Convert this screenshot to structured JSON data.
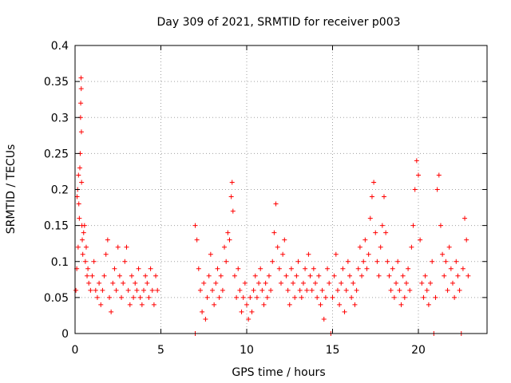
{
  "chart_data": {
    "type": "scatter",
    "title": "Day 309 of 2021, SRMTID for receiver p003",
    "xlabel": "GPS time / hours",
    "ylabel": "SRMTID / TECUs",
    "xlim": [
      0,
      24
    ],
    "ylim": [
      0,
      0.4
    ],
    "xticks": [
      0,
      5,
      10,
      15,
      20
    ],
    "xtick_labels": [
      "0",
      "5",
      "10",
      "15",
      "20"
    ],
    "yticks": [
      0,
      0.05,
      0.1,
      0.15,
      0.2,
      0.25,
      0.3,
      0.35,
      0.4
    ],
    "ytick_labels": [
      "0",
      "0.05",
      "0.1",
      "0.15",
      "0.2",
      "0.25",
      "0.3",
      "0.35",
      "0.4"
    ],
    "grid": true,
    "marker": "+",
    "series_color": "#ff0000",
    "series": [
      {
        "name": "SRMTID",
        "points": [
          [
            0.05,
            0.06
          ],
          [
            0.1,
            0.09
          ],
          [
            0.12,
            0.19
          ],
          [
            0.15,
            0.2
          ],
          [
            0.18,
            0.12
          ],
          [
            0.2,
            0.22
          ],
          [
            0.22,
            0.18
          ],
          [
            0.25,
            0.16
          ],
          [
            0.28,
            0.23
          ],
          [
            0.3,
            0.25
          ],
          [
            0.32,
            0.3
          ],
          [
            0.33,
            0.32
          ],
          [
            0.35,
            0.355
          ],
          [
            0.36,
            0.34
          ],
          [
            0.37,
            0.28
          ],
          [
            0.38,
            0.21
          ],
          [
            0.4,
            0.15
          ],
          [
            0.42,
            0.13
          ],
          [
            0.45,
            0.11
          ],
          [
            0.5,
            0.14
          ],
          [
            0.55,
            0.15
          ],
          [
            0.6,
            0.1
          ],
          [
            0.65,
            0.12
          ],
          [
            0.7,
            0.08
          ],
          [
            0.75,
            0.09
          ],
          [
            0.8,
            0.07
          ],
          [
            0.9,
            0.06
          ],
          [
            1.0,
            0.08
          ],
          [
            1.1,
            0.1
          ],
          [
            1.2,
            0.06
          ],
          [
            1.3,
            0.05
          ],
          [
            1.4,
            0.07
          ],
          [
            1.5,
            0.04
          ],
          [
            1.6,
            0.06
          ],
          [
            1.7,
            0.08
          ],
          [
            1.8,
            0.11
          ],
          [
            1.9,
            0.13
          ],
          [
            2.0,
            0.05
          ],
          [
            2.1,
            0.03
          ],
          [
            2.2,
            0.07
          ],
          [
            2.3,
            0.09
          ],
          [
            2.4,
            0.06
          ],
          [
            2.5,
            0.12
          ],
          [
            2.6,
            0.08
          ],
          [
            2.7,
            0.05
          ],
          [
            2.8,
            0.07
          ],
          [
            2.9,
            0.1
          ],
          [
            3.0,
            0.12
          ],
          [
            3.1,
            0.06
          ],
          [
            3.2,
            0.04
          ],
          [
            3.3,
            0.08
          ],
          [
            3.4,
            0.05
          ],
          [
            3.5,
            0.07
          ],
          [
            3.6,
            0.06
          ],
          [
            3.7,
            0.09
          ],
          [
            3.8,
            0.05
          ],
          [
            3.9,
            0.04
          ],
          [
            4.0,
            0.06
          ],
          [
            4.1,
            0.08
          ],
          [
            4.2,
            0.07
          ],
          [
            4.3,
            0.05
          ],
          [
            4.4,
            0.09
          ],
          [
            4.5,
            0.06
          ],
          [
            4.6,
            0.04
          ],
          [
            4.7,
            0.08
          ],
          [
            4.8,
            0.06
          ],
          [
            7.0,
            0.0
          ],
          [
            7.0,
            0.15
          ],
          [
            7.1,
            0.13
          ],
          [
            7.2,
            0.09
          ],
          [
            7.3,
            0.06
          ],
          [
            7.4,
            0.03
          ],
          [
            7.5,
            0.07
          ],
          [
            7.6,
            0.02
          ],
          [
            7.7,
            0.05
          ],
          [
            7.8,
            0.08
          ],
          [
            7.9,
            0.11
          ],
          [
            8.0,
            0.06
          ],
          [
            8.1,
            0.04
          ],
          [
            8.2,
            0.07
          ],
          [
            8.3,
            0.09
          ],
          [
            8.4,
            0.05
          ],
          [
            8.5,
            0.08
          ],
          [
            8.6,
            0.06
          ],
          [
            8.7,
            0.12
          ],
          [
            8.8,
            0.1
          ],
          [
            8.9,
            0.14
          ],
          [
            9.0,
            0.13
          ],
          [
            9.1,
            0.19
          ],
          [
            9.15,
            0.21
          ],
          [
            9.2,
            0.17
          ],
          [
            9.3,
            0.08
          ],
          [
            9.4,
            0.05
          ],
          [
            9.5,
            0.09
          ],
          [
            9.6,
            0.06
          ],
          [
            9.7,
            0.03
          ],
          [
            9.8,
            0.05
          ],
          [
            9.9,
            0.07
          ],
          [
            10.0,
            0.04
          ],
          [
            10.1,
            0.02
          ],
          [
            10.2,
            0.05
          ],
          [
            10.3,
            0.03
          ],
          [
            10.4,
            0.06
          ],
          [
            10.5,
            0.08
          ],
          [
            10.6,
            0.05
          ],
          [
            10.7,
            0.07
          ],
          [
            10.8,
            0.09
          ],
          [
            10.9,
            0.06
          ],
          [
            11.0,
            0.04
          ],
          [
            11.1,
            0.07
          ],
          [
            11.2,
            0.05
          ],
          [
            11.3,
            0.08
          ],
          [
            11.4,
            0.06
          ],
          [
            11.5,
            0.1
          ],
          [
            11.6,
            0.14
          ],
          [
            11.7,
            0.18
          ],
          [
            11.8,
            0.12
          ],
          [
            11.9,
            0.09
          ],
          [
            12.0,
            0.07
          ],
          [
            12.1,
            0.11
          ],
          [
            12.2,
            0.13
          ],
          [
            12.3,
            0.08
          ],
          [
            12.4,
            0.06
          ],
          [
            12.5,
            0.04
          ],
          [
            12.6,
            0.09
          ],
          [
            12.7,
            0.07
          ],
          [
            12.8,
            0.05
          ],
          [
            12.9,
            0.08
          ],
          [
            13.0,
            0.1
          ],
          [
            13.1,
            0.06
          ],
          [
            13.2,
            0.05
          ],
          [
            13.3,
            0.07
          ],
          [
            13.4,
            0.09
          ],
          [
            13.5,
            0.06
          ],
          [
            13.6,
            0.11
          ],
          [
            13.7,
            0.08
          ],
          [
            13.8,
            0.06
          ],
          [
            13.9,
            0.09
          ],
          [
            14.0,
            0.07
          ],
          [
            14.1,
            0.05
          ],
          [
            14.2,
            0.08
          ],
          [
            14.3,
            0.04
          ],
          [
            14.4,
            0.06
          ],
          [
            14.5,
            0.02
          ],
          [
            14.6,
            0.05
          ],
          [
            14.7,
            0.09
          ],
          [
            14.8,
            0.07
          ],
          [
            14.9,
            0.0
          ],
          [
            15.0,
            0.05
          ],
          [
            15.1,
            0.08
          ],
          [
            15.2,
            0.11
          ],
          [
            15.3,
            0.06
          ],
          [
            15.4,
            0.04
          ],
          [
            15.5,
            0.07
          ],
          [
            15.6,
            0.09
          ],
          [
            15.7,
            0.03
          ],
          [
            15.8,
            0.06
          ],
          [
            15.9,
            0.1
          ],
          [
            16.0,
            0.08
          ],
          [
            16.1,
            0.05
          ],
          [
            16.2,
            0.07
          ],
          [
            16.3,
            0.04
          ],
          [
            16.4,
            0.06
          ],
          [
            16.5,
            0.09
          ],
          [
            16.6,
            0.12
          ],
          [
            16.7,
            0.08
          ],
          [
            16.8,
            0.1
          ],
          [
            16.9,
            0.13
          ],
          [
            17.0,
            0.09
          ],
          [
            17.1,
            0.11
          ],
          [
            17.2,
            0.16
          ],
          [
            17.3,
            0.19
          ],
          [
            17.4,
            0.21
          ],
          [
            17.5,
            0.14
          ],
          [
            17.6,
            0.1
          ],
          [
            17.7,
            0.08
          ],
          [
            17.8,
            0.12
          ],
          [
            17.9,
            0.15
          ],
          [
            18.0,
            0.19
          ],
          [
            18.1,
            0.14
          ],
          [
            18.2,
            0.1
          ],
          [
            18.3,
            0.08
          ],
          [
            18.4,
            0.06
          ],
          [
            18.5,
            0.09
          ],
          [
            18.6,
            0.05
          ],
          [
            18.7,
            0.07
          ],
          [
            18.8,
            0.1
          ],
          [
            18.9,
            0.06
          ],
          [
            19.0,
            0.04
          ],
          [
            19.1,
            0.08
          ],
          [
            19.2,
            0.05
          ],
          [
            19.3,
            0.07
          ],
          [
            19.4,
            0.09
          ],
          [
            19.5,
            0.06
          ],
          [
            19.6,
            0.12
          ],
          [
            19.7,
            0.15
          ],
          [
            19.8,
            0.2
          ],
          [
            19.9,
            0.24
          ],
          [
            20.0,
            0.22
          ],
          [
            20.1,
            0.13
          ],
          [
            20.2,
            0.07
          ],
          [
            20.3,
            0.05
          ],
          [
            20.4,
            0.08
          ],
          [
            20.5,
            0.06
          ],
          [
            20.6,
            0.04
          ],
          [
            20.7,
            0.07
          ],
          [
            20.8,
            0.1
          ],
          [
            20.9,
            0.0
          ],
          [
            21.0,
            0.05
          ],
          [
            21.1,
            0.2
          ],
          [
            21.2,
            0.22
          ],
          [
            21.3,
            0.15
          ],
          [
            21.4,
            0.11
          ],
          [
            21.5,
            0.08
          ],
          [
            21.6,
            0.1
          ],
          [
            21.7,
            0.06
          ],
          [
            21.8,
            0.12
          ],
          [
            21.9,
            0.09
          ],
          [
            22.0,
            0.07
          ],
          [
            22.1,
            0.05
          ],
          [
            22.2,
            0.1
          ],
          [
            22.3,
            0.08
          ],
          [
            22.4,
            0.06
          ],
          [
            22.5,
            0.0
          ],
          [
            22.6,
            0.09
          ],
          [
            22.7,
            0.16
          ],
          [
            22.8,
            0.13
          ],
          [
            22.9,
            0.08
          ]
        ]
      }
    ]
  }
}
